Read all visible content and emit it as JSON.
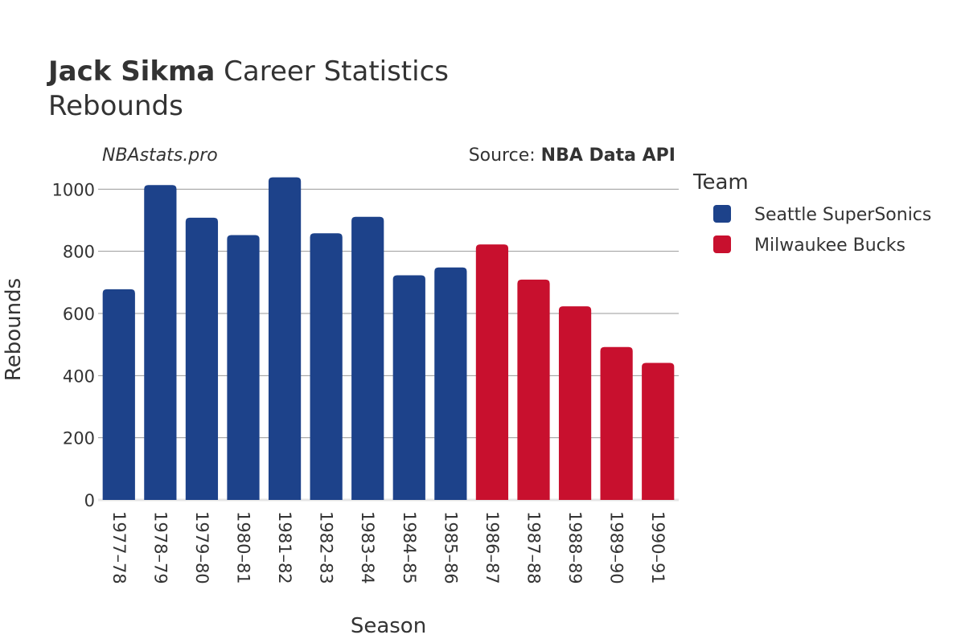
{
  "title": {
    "bold": "Jack Sikma",
    "rest": " Career Statistics",
    "subtitle": "Rebounds"
  },
  "watermark": "NBAstats.pro",
  "source": {
    "prefix": "Source: ",
    "bold": "NBA Data API"
  },
  "legend": {
    "title": "Team",
    "items": [
      {
        "label": "Seattle SuperSonics",
        "color": "#1d428a"
      },
      {
        "label": "Milwaukee Bucks",
        "color": "#c8102e"
      }
    ]
  },
  "chart_data": {
    "type": "bar",
    "title": "Jack Sikma Career Statistics",
    "subtitle": "Rebounds",
    "xlabel": "Season",
    "ylabel": "Rebounds",
    "ylim": [
      0,
      1050
    ],
    "yticks": [
      0,
      200,
      400,
      600,
      800,
      1000
    ],
    "grid": true,
    "legend_position": "right",
    "categories": [
      "1977–78",
      "1978–79",
      "1979–80",
      "1980–81",
      "1981–82",
      "1982–83",
      "1983–84",
      "1984–85",
      "1985–86",
      "1986–87",
      "1987–88",
      "1988–89",
      "1989–90",
      "1990–91"
    ],
    "series": [
      {
        "name": "Seattle SuperSonics",
        "color": "#1d428a",
        "values": [
          678,
          1013,
          908,
          852,
          1038,
          858,
          911,
          723,
          748,
          null,
          null,
          null,
          null,
          null
        ]
      },
      {
        "name": "Milwaukee Bucks",
        "color": "#c8102e",
        "values": [
          null,
          null,
          null,
          null,
          null,
          null,
          null,
          null,
          null,
          822,
          709,
          623,
          492,
          441
        ]
      }
    ]
  }
}
